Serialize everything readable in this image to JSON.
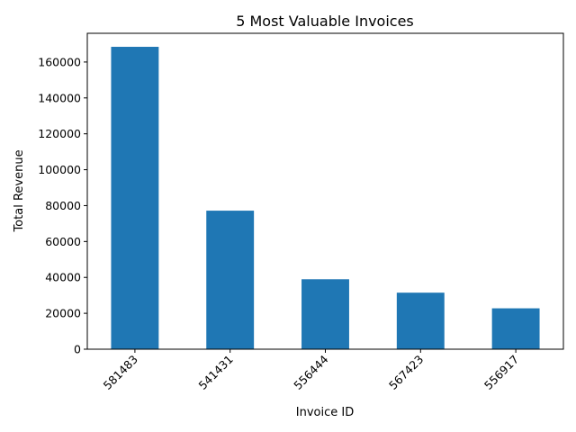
{
  "chart_data": {
    "type": "bar",
    "title": "5 Most Valuable Invoices",
    "xlabel": "Invoice ID",
    "ylabel": "Total Revenue",
    "categories": [
      "581483",
      "541431",
      "556444",
      "567423",
      "556917"
    ],
    "values": [
      168470,
      77184,
      38970,
      31490,
      22775
    ],
    "ylim": [
      0,
      176000
    ],
    "yticks": [
      0,
      20000,
      40000,
      60000,
      80000,
      100000,
      120000,
      140000,
      160000
    ],
    "ytick_labels": [
      "0",
      "20000",
      "40000",
      "60000",
      "80000",
      "100000",
      "120000",
      "140000",
      "160000"
    ],
    "bar_color": "#1f77b4",
    "grid": false,
    "legend": "none"
  }
}
